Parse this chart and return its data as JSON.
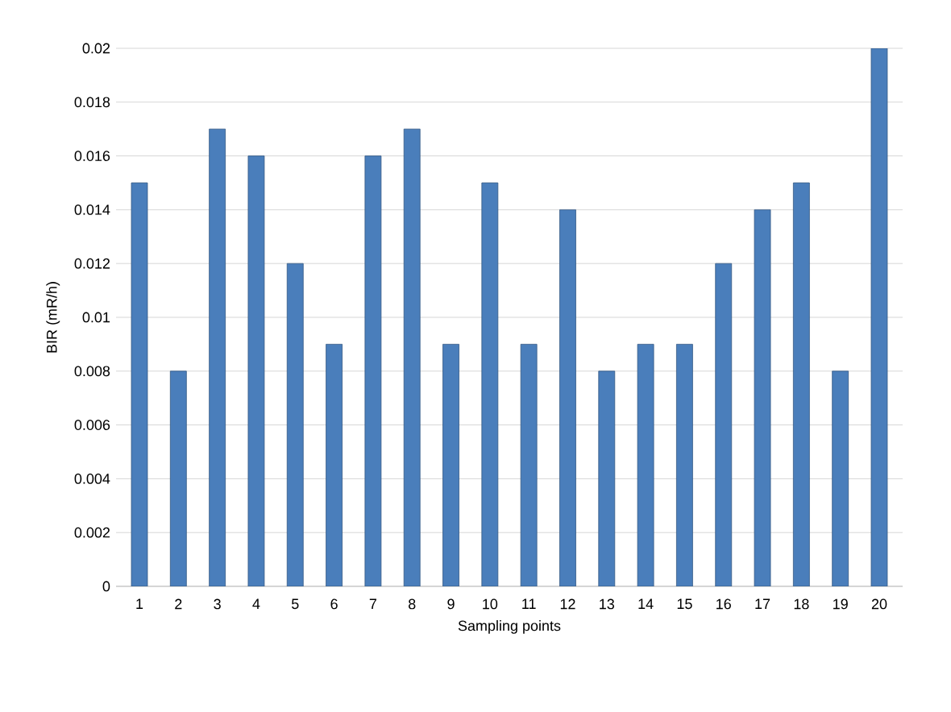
{
  "chart_data": {
    "type": "bar",
    "xlabel": "Sampling points",
    "ylabel": "BIR (mR/h)",
    "categories": [
      "1",
      "2",
      "3",
      "4",
      "5",
      "6",
      "7",
      "8",
      "9",
      "10",
      "11",
      "12",
      "13",
      "14",
      "15",
      "16",
      "17",
      "18",
      "19",
      "20"
    ],
    "values": [
      0.015,
      0.008,
      0.017,
      0.016,
      0.012,
      0.009,
      0.016,
      0.017,
      0.009,
      0.015,
      0.009,
      0.014,
      0.008,
      0.009,
      0.009,
      0.012,
      0.014,
      0.015,
      0.008,
      0.02
    ],
    "color": "#4a7ebb",
    "ylim": [
      0,
      0.02
    ],
    "yticks": [
      0,
      0.002,
      0.004,
      0.006,
      0.008,
      0.01,
      0.012,
      0.014,
      0.016,
      0.018,
      0.02
    ],
    "grid": "y"
  }
}
